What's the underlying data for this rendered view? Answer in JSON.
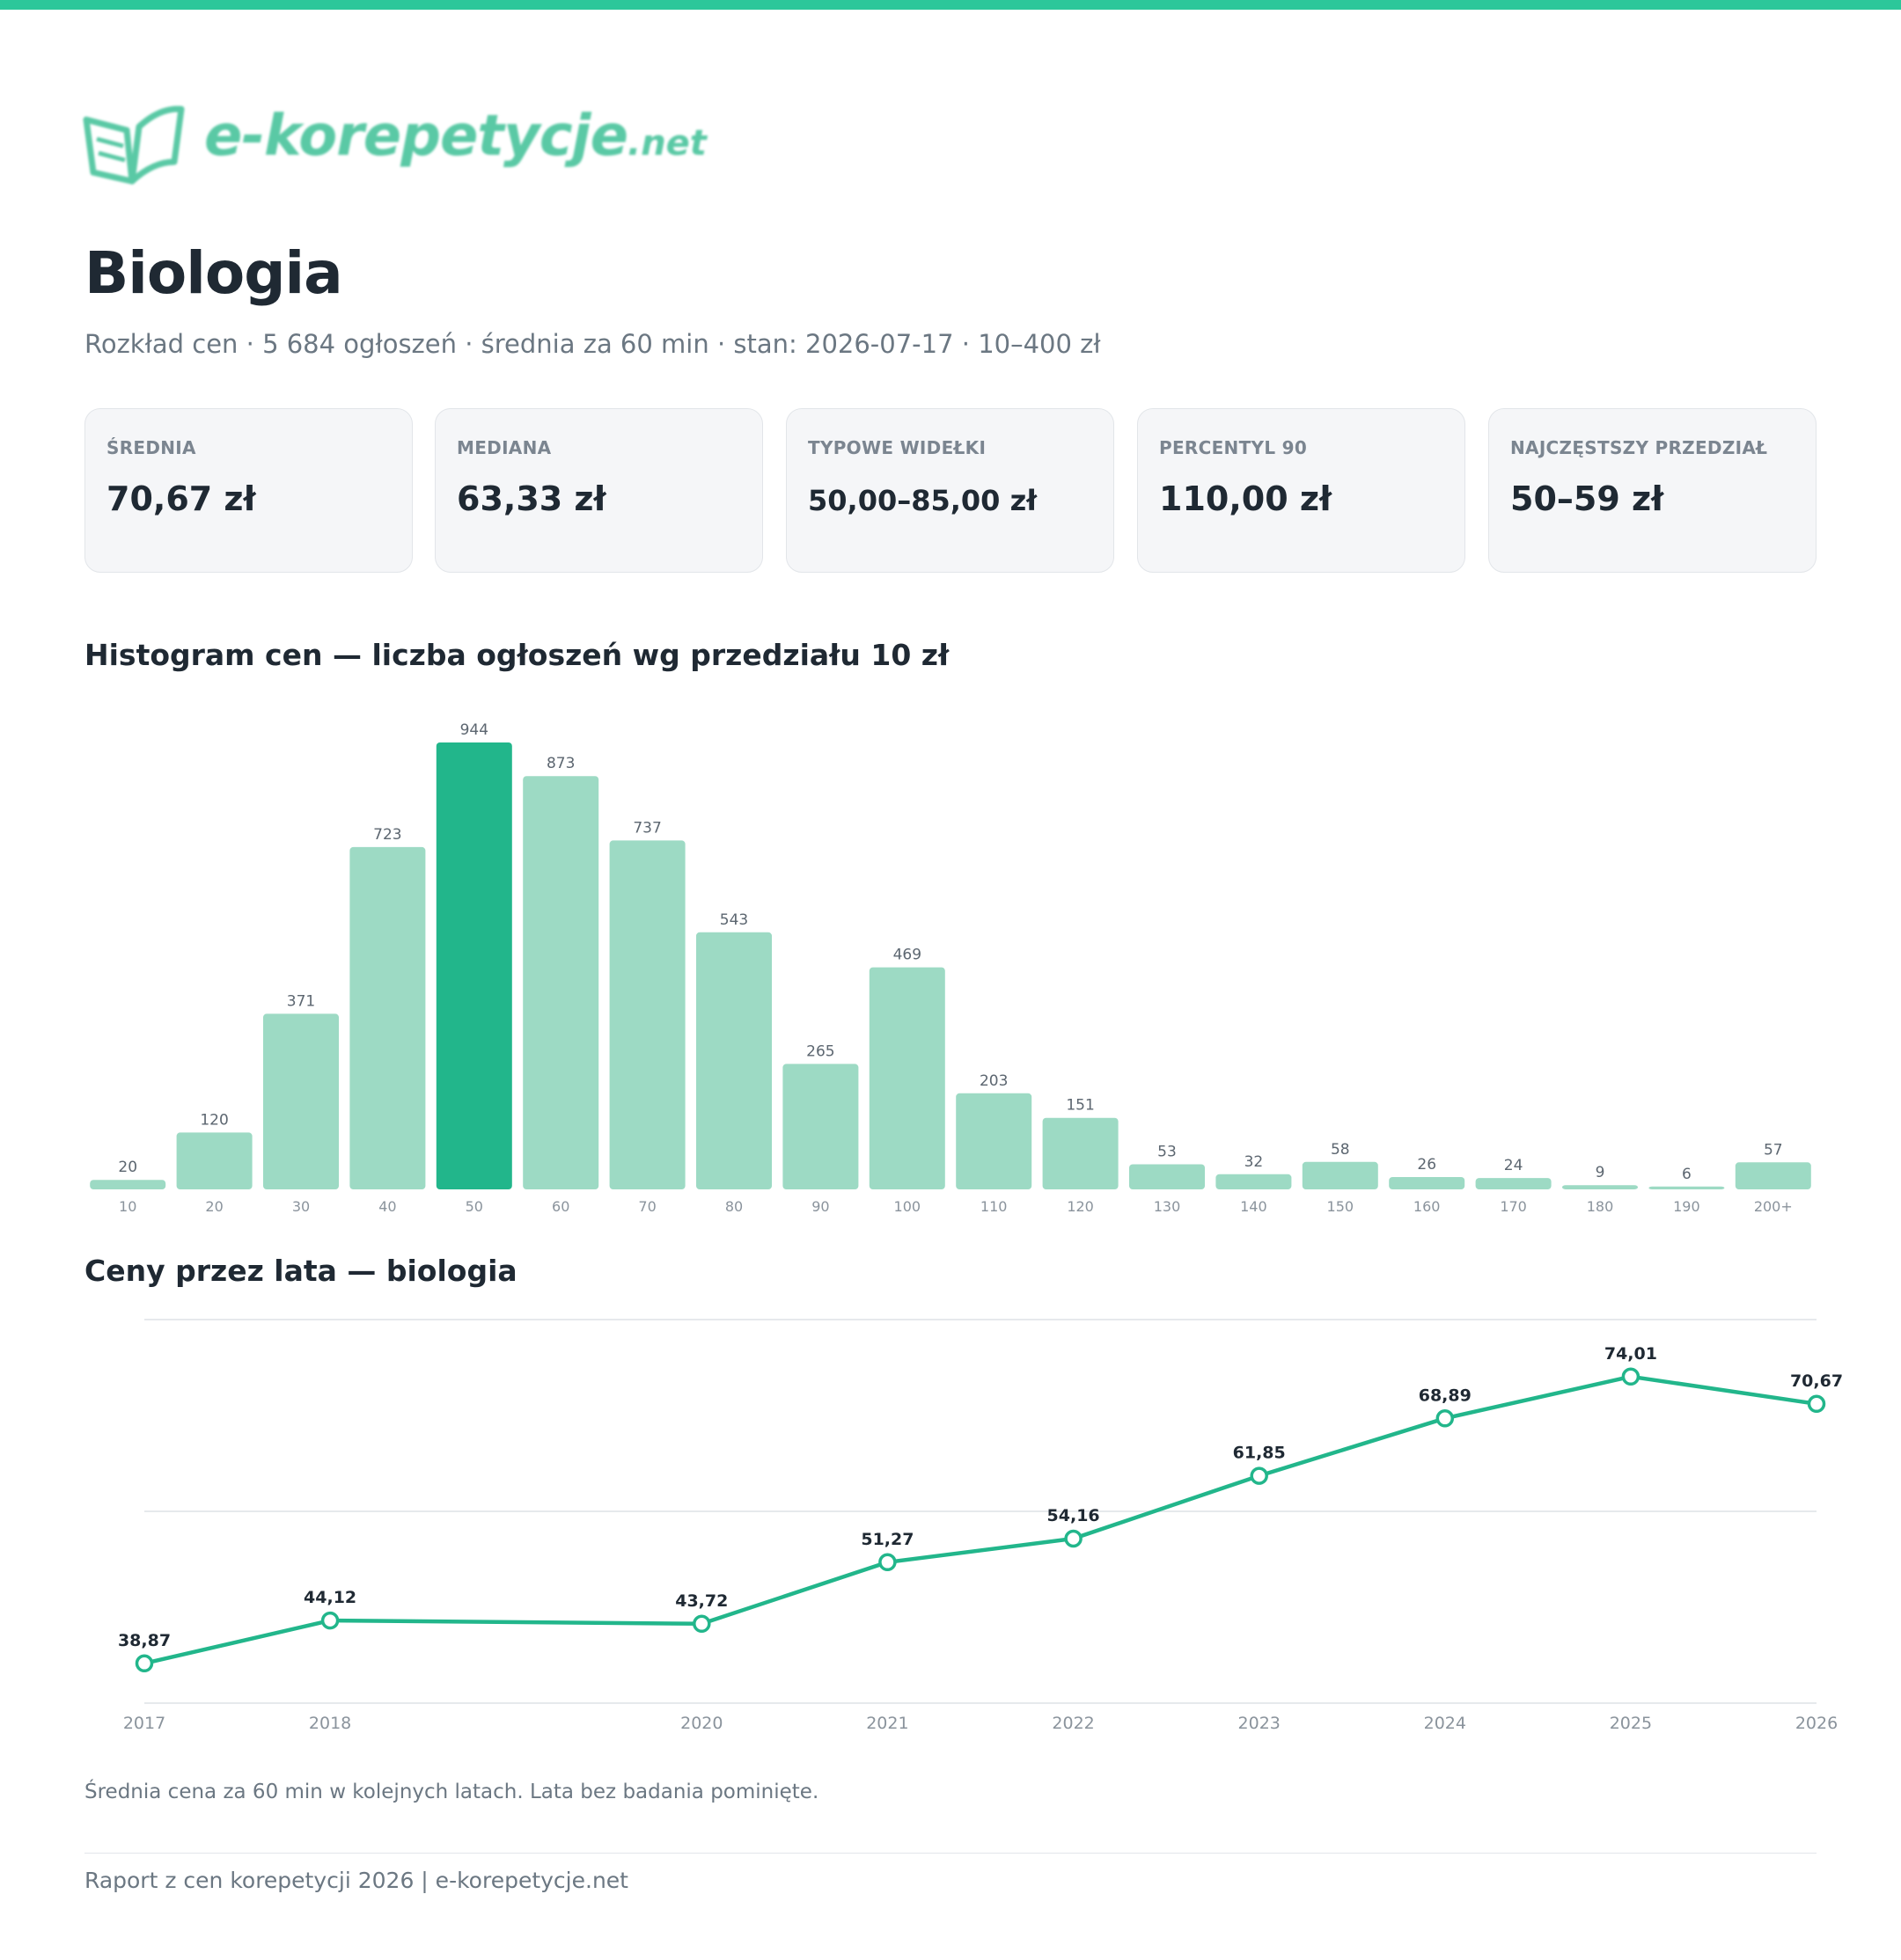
{
  "brand": {
    "name": "e-korepetycje",
    "tld": ".net",
    "accent_color": "#2cc79a",
    "logo_color": "#5ac9a5",
    "logo_icon": "open-book-icon"
  },
  "title": "Biologia",
  "subtitle": "Rozkład cen · 5 684 ogłoszeń · średnia za 60 min · stan: 2026-07-17 · 10–400 zł",
  "stats": [
    {
      "label": "ŚREDNIA",
      "value": "70,67 zł"
    },
    {
      "label": "MEDIANA",
      "value": "63,33 zł"
    },
    {
      "label": "TYPOWE WIDEŁKI",
      "value": "50,00–85,00 zł"
    },
    {
      "label": "PERCENTYL 90",
      "value": "110,00 zł"
    },
    {
      "label": "NAJCZĘSTSZY PRZEDZIAŁ",
      "value": "50–59 zł"
    }
  ],
  "histogram_title": "Histogram cen — liczba ogłoszeń wg przedziału 10 zł",
  "line_title": "Ceny przez lata — biologia",
  "line_note": "Średnia cena za 60 min w kolejnych latach. Lata bez badania pominięte.",
  "footer": "Raport z cen korepetycji 2026 | e-korepetycje.net",
  "chart_data": [
    {
      "type": "bar",
      "title": "Histogram cen — liczba ogłoszeń wg przedziału 10 zł",
      "categories": [
        "10",
        "20",
        "30",
        "40",
        "50",
        "60",
        "70",
        "80",
        "90",
        "100",
        "110",
        "120",
        "130",
        "140",
        "150",
        "160",
        "170",
        "180",
        "190",
        "200+"
      ],
      "values": [
        20,
        120,
        371,
        723,
        944,
        873,
        737,
        543,
        265,
        469,
        203,
        151,
        53,
        32,
        58,
        26,
        24,
        9,
        6,
        57
      ],
      "highlight_category": "50",
      "colors": {
        "bar": "#9ddac4",
        "highlight": "#22b68b",
        "label": "#5c6670",
        "tick": "#8a939c"
      },
      "grid": false
    },
    {
      "type": "line",
      "title": "Ceny przez lata — biologia",
      "x": [
        "2017",
        "2018",
        "2020",
        "2021",
        "2022",
        "2023",
        "2024",
        "2025",
        "2026"
      ],
      "x_numeric": [
        2017,
        2018,
        2020,
        2021,
        2022,
        2023,
        2024,
        2025,
        2026
      ],
      "values": [
        38.87,
        44.12,
        43.72,
        51.27,
        54.16,
        61.85,
        68.89,
        74.01,
        70.67
      ],
      "labels": [
        "38,87",
        "44,12",
        "43,72",
        "51,27",
        "54,16",
        "61,85",
        "68,89",
        "74,01",
        "70,67"
      ],
      "ylim": [
        34,
        81
      ],
      "grid": true,
      "colors": {
        "line": "#22b68b",
        "grid": "#e6e9ec",
        "label": "#1f2933",
        "tick": "#8a939c"
      }
    }
  ]
}
